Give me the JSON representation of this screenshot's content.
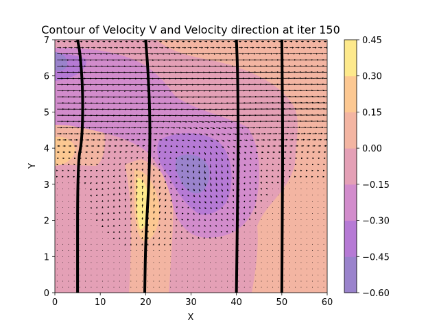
{
  "chart_data": {
    "type": "heatmap",
    "title": "Contour of Velocity V and Velocity direction at iter 150",
    "xlabel": "X",
    "ylabel": "Y",
    "xlim": [
      0,
      60
    ],
    "ylim": [
      0,
      7
    ],
    "x_ticks": [
      "0",
      "10",
      "20",
      "30",
      "40",
      "50",
      "60"
    ],
    "y_ticks": [
      "0",
      "1",
      "2",
      "3",
      "4",
      "5",
      "6",
      "7"
    ],
    "colorbar": {
      "levels": [
        -0.6,
        -0.45,
        -0.3,
        -0.15,
        0.0,
        0.15,
        0.3,
        0.45
      ],
      "tick_labels": [
        "−0.60",
        "−0.45",
        "−0.30",
        "−0.15",
        "0.00",
        "0.15",
        "0.30",
        "0.45"
      ],
      "colors": [
        "#9a83cc",
        "#b67ad5",
        "#d28ccc",
        "#e4a0b6",
        "#f3b5a2",
        "#fcc892",
        "#fde98c"
      ]
    },
    "grid": false,
    "contour_features": [
      {
        "kind": "negative_core",
        "center": [
          30,
          3.3
        ],
        "min_level": -0.6
      },
      {
        "kind": "positive_core",
        "center": [
          19.5,
          2.6
        ],
        "max_level": 0.45
      },
      {
        "kind": "positive_core",
        "center": [
          2,
          4
        ],
        "max_level": 0.3
      },
      {
        "kind": "negative_core",
        "center": [
          1,
          6.4
        ],
        "min_level": -0.45
      }
    ],
    "streamlines": [
      {
        "name": "",
        "points": [
          [
            5,
            0
          ],
          [
            5,
            3.6
          ],
          [
            6,
            4.2
          ],
          [
            6.2,
            5.5
          ],
          [
            5.6,
            6.6
          ],
          [
            5,
            7
          ]
        ]
      },
      {
        "name": "",
        "points": [
          [
            19.8,
            0
          ],
          [
            20,
            1.5
          ],
          [
            20.8,
            3.2
          ],
          [
            21,
            4.8
          ],
          [
            20.5,
            6.2
          ],
          [
            20,
            7
          ]
        ]
      },
      {
        "name": "",
        "points": [
          [
            40,
            0
          ],
          [
            40.2,
            2
          ],
          [
            40.4,
            4
          ],
          [
            40.3,
            6
          ],
          [
            40,
            7
          ]
        ]
      },
      {
        "name": "",
        "points": [
          [
            50,
            0
          ],
          [
            50.1,
            2
          ],
          [
            50.2,
            4
          ],
          [
            50.1,
            6
          ],
          [
            50,
            7
          ]
        ]
      }
    ]
  }
}
